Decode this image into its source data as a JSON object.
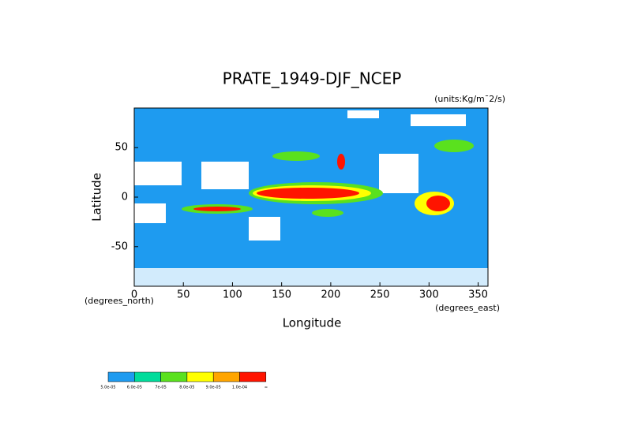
{
  "chart_data": {
    "type": "contour",
    "title": "PRATE_1949-DJF_NCEP",
    "units": "(units:Kg/m¯2/s)",
    "x_label": "Longitude",
    "y_label": "Latitude",
    "x_unit": "(degrees_east)",
    "y_unit": "(degrees_north)",
    "xlim": [
      0,
      360
    ],
    "ylim": [
      -90,
      90
    ],
    "xticks": [
      0,
      50,
      100,
      150,
      200,
      250,
      300,
      350
    ],
    "yticks": [
      -50,
      0,
      50
    ],
    "colorbar": {
      "colors": [
        "#1e9bf0",
        "#00dc9b",
        "#5ae11e",
        "#ffff00",
        "#ffa500",
        "#ff1400"
      ],
      "labels": [
        "5.0e-05",
        "6.0e-05",
        "7e-05",
        "8.0e-05",
        "9.0e-05",
        "1.0e-04",
        "∞"
      ]
    }
  }
}
